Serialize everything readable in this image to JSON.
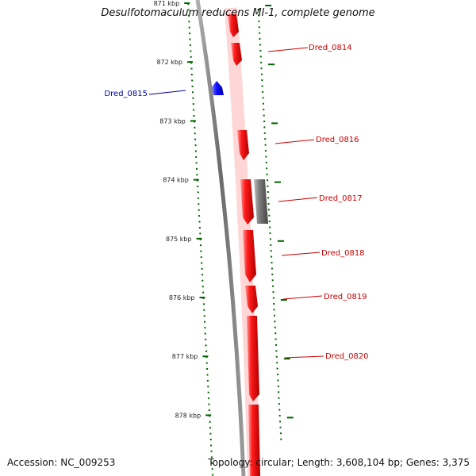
{
  "title": "Desulfotomaculum reducens MI-1, complete genome",
  "accession": "Accession: NC_009253",
  "summary": "Topology: circular; Length: 3,608,104 bp; Genes: 3,375",
  "colors": {
    "forward_gene": "#ff0000",
    "reverse_gene": "#0000ff",
    "other_feature": "#666666",
    "backbone": "#808080",
    "tick": "#006400",
    "forward_label": "#cc0000",
    "reverse_label": "#0000aa"
  },
  "ruler": {
    "unit": "kbp",
    "ticks": [
      {
        "label": "871 kbp"
      },
      {
        "label": "872 kbp"
      },
      {
        "label": "873 kbp"
      },
      {
        "label": "874 kbp"
      },
      {
        "label": "875 kbp"
      },
      {
        "label": "876 kbp"
      },
      {
        "label": "877 kbp"
      },
      {
        "label": "878 kbp"
      }
    ]
  },
  "gene_labels": [
    {
      "text": "Dred_0814",
      "strand": "forward"
    },
    {
      "text": "Dred_0815",
      "strand": "reverse"
    },
    {
      "text": "Dred_0816",
      "strand": "forward"
    },
    {
      "text": "Dred_0817",
      "strand": "forward"
    },
    {
      "text": "Dred_0818",
      "strand": "forward"
    },
    {
      "text": "Dred_0819",
      "strand": "forward"
    },
    {
      "text": "Dred_0820",
      "strand": "forward"
    }
  ]
}
